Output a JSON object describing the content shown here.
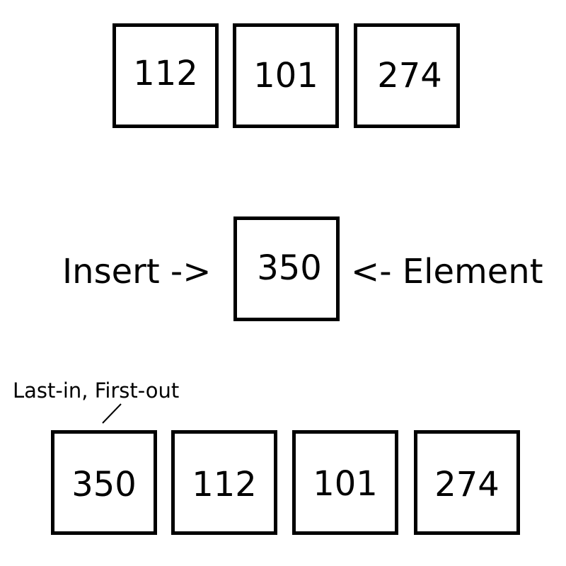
{
  "initial_stack": [
    "112",
    "101",
    "274"
  ],
  "insert_row": {
    "left_label": "Insert ->",
    "element": "350",
    "right_label": "<- Element"
  },
  "result_stack": [
    "350",
    "112",
    "101",
    "274"
  ],
  "annotation": "Last-in, First-out"
}
